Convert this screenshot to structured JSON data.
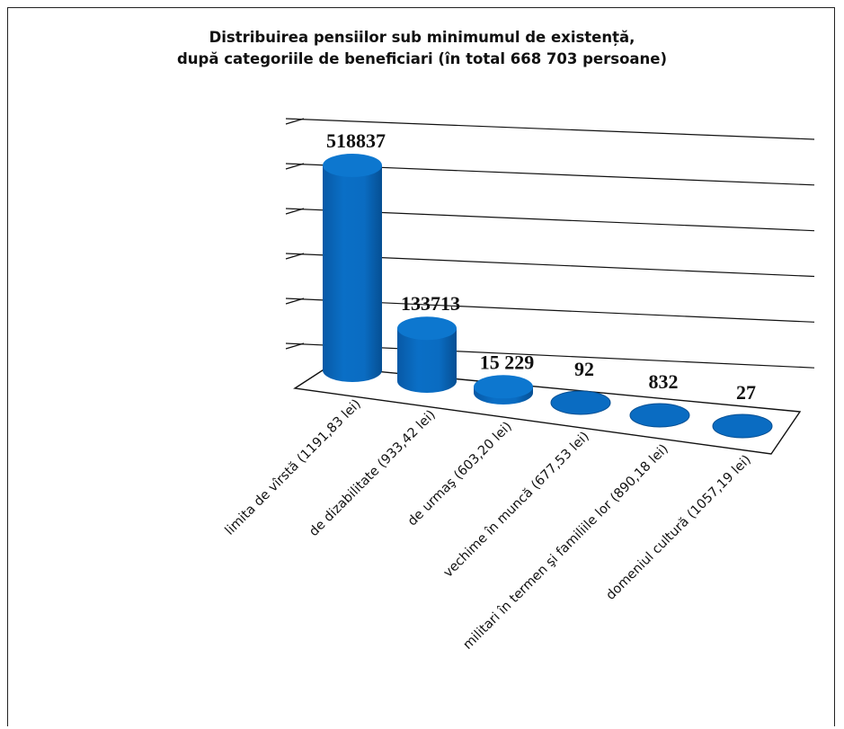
{
  "chart_data": {
    "type": "bar",
    "title_lines": [
      "Distribuirea pensiilor sub minimumul de existență,",
      "după categoriile de beneficiari (în total 668 703 persoane)"
    ],
    "categories": [
      "limita de vîrstă (1191,83 lei)",
      "de dizabilitate (933,42 lei)",
      "de urmaş (603,20 lei)",
      "vechime în muncă (677,53 lei)",
      "militari în termen şi familiile lor (890,18 lei)",
      "domeniul cultură (1057,19 lei)"
    ],
    "values": [
      518837,
      133713,
      15229,
      92,
      832,
      27
    ],
    "data_labels": [
      "518837",
      "133713",
      "15 229",
      "92",
      "832",
      "27"
    ],
    "ylim": [
      0,
      600000
    ],
    "grid": true,
    "style": "3d-cylinder",
    "colors": {
      "bar": "#0a6cc2",
      "bar_dark": "#0656a0",
      "bar_top": "#1a82d8"
    }
  }
}
